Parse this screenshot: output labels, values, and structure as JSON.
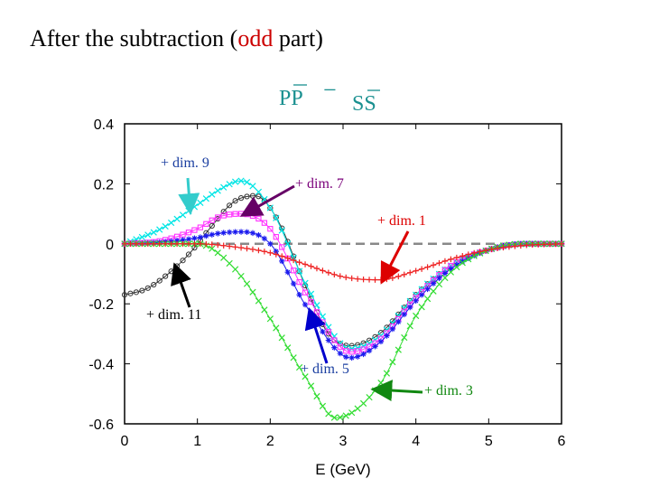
{
  "slide": {
    "title_before": "After the subtraction (",
    "title_highlight": "odd",
    "title_after": " part)",
    "subtitle": {
      "left": "PP",
      "operator": "−",
      "right": "SS"
    }
  },
  "colors": {
    "cyan": "#00e5e5",
    "black": "#333333",
    "magenta": "#ff33ff",
    "blue": "#1a1aee",
    "red": "#ee2222",
    "green": "#33dd33",
    "subtitle": "#1a9090"
  },
  "chart_data": {
    "type": "line",
    "title": "",
    "xlabel": "E (GeV)",
    "ylabel": "",
    "xlim": [
      0,
      6
    ],
    "ylim": [
      -0.6,
      0.4
    ],
    "xticks": [
      "0",
      "1",
      "2",
      "3",
      "4",
      "5",
      "6"
    ],
    "yticks": [
      "-0.6",
      "-0.4",
      "-0.2",
      "0",
      "0.2",
      "0.4"
    ],
    "grid": false,
    "zero_line": true,
    "series": [
      {
        "name": "+ dim. 1",
        "color_key": "red",
        "marker": "plus",
        "x": [
          0,
          0.5,
          1.0,
          1.5,
          2.0,
          2.5,
          3.0,
          3.5,
          4.0,
          4.5,
          5.0,
          5.5,
          6.0
        ],
        "y": [
          0,
          0.0,
          0.0,
          -0.01,
          -0.03,
          -0.07,
          -0.11,
          -0.12,
          -0.09,
          -0.05,
          -0.02,
          -0.005,
          0
        ]
      },
      {
        "name": "+ dim. 3",
        "color_key": "green",
        "marker": "x",
        "x": [
          0,
          0.5,
          1.0,
          1.5,
          2.0,
          2.5,
          2.9,
          3.5,
          4.0,
          4.5,
          5.0,
          5.5,
          6.0
        ],
        "y": [
          0,
          0.0,
          0.0,
          -0.08,
          -0.25,
          -0.45,
          -0.58,
          -0.47,
          -0.24,
          -0.09,
          -0.02,
          0,
          0
        ]
      },
      {
        "name": "+ dim. 5",
        "color_key": "blue",
        "marker": "star",
        "x": [
          0,
          0.5,
          1.0,
          1.3,
          1.6,
          2.0,
          2.5,
          3.1,
          3.5,
          4.0,
          4.5,
          5.0,
          5.5,
          6.0
        ],
        "y": [
          0,
          0.005,
          0.02,
          0.035,
          0.04,
          0.0,
          -0.21,
          -0.38,
          -0.33,
          -0.19,
          -0.08,
          -0.02,
          0,
          0
        ]
      },
      {
        "name": "",
        "color_key": "magenta",
        "marker": "square",
        "x": [
          0,
          0.5,
          1.0,
          1.3,
          1.6,
          2.0,
          2.5,
          3.1,
          3.5,
          4.0,
          4.5,
          5.0,
          5.5,
          6.0
        ],
        "y": [
          0,
          0.01,
          0.05,
          0.09,
          0.1,
          0.05,
          -0.17,
          -0.36,
          -0.32,
          -0.18,
          -0.07,
          -0.02,
          0,
          0
        ]
      },
      {
        "name": "+ dim. 9",
        "color_key": "cyan",
        "marker": "x",
        "x": [
          0,
          0.5,
          1.0,
          1.3,
          1.6,
          2.0,
          2.5,
          3.1,
          3.5,
          4.0,
          4.5,
          5.0,
          5.5,
          6.0
        ],
        "y": [
          0,
          0.05,
          0.13,
          0.18,
          0.21,
          0.12,
          -0.14,
          -0.35,
          -0.31,
          -0.17,
          -0.07,
          -0.02,
          0,
          0
        ]
      },
      {
        "name": "+ dim. 11",
        "color_key": "black",
        "marker": "circle",
        "x": [
          0,
          0.3,
          0.6,
          0.9,
          1.2,
          1.5,
          1.8,
          2.1,
          2.5,
          2.8,
          3.1,
          3.5,
          4.0,
          4.5,
          5.0,
          5.5,
          6.0
        ],
        "y": [
          -0.17,
          -0.15,
          -0.1,
          -0.03,
          0.06,
          0.14,
          0.16,
          0.08,
          -0.15,
          -0.3,
          -0.34,
          -0.3,
          -0.17,
          -0.07,
          -0.02,
          0,
          0
        ]
      }
    ],
    "annotations": [
      {
        "text": "+ dim. 9",
        "color_key": "blue",
        "series": 4,
        "at_x": 0.9
      },
      {
        "text": "+ dim. 7",
        "color_key": "purple",
        "series": 3,
        "at_x": 1.65
      },
      {
        "text": "+ dim. 1",
        "color_key": "red",
        "series": 0,
        "at_x": 3.55
      },
      {
        "text": "+ dim. 11",
        "color_key": "black",
        "series": 5,
        "at_x": 0.7
      },
      {
        "text": "+ dim. 5",
        "color_key": "blue",
        "series": 2,
        "at_x": 2.55
      },
      {
        "text": "+ dim. 3",
        "color_key": "green",
        "series": 1,
        "at_x": 3.45
      }
    ]
  }
}
